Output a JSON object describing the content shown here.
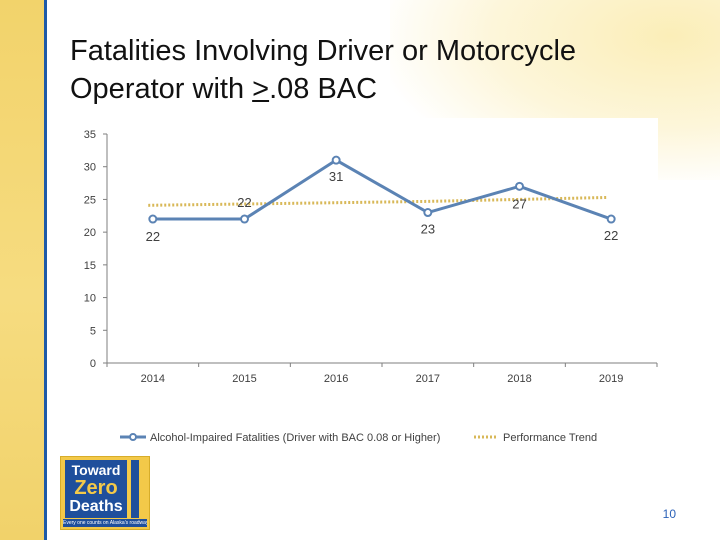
{
  "slide": {
    "title_line1": "Fatalities Involving Driver or Motorcycle",
    "title_line2_pre": "Operator with ",
    "title_line2_u": ">",
    "title_line2_post": ".08 BAC",
    "page_number": "10"
  },
  "logo": {
    "line1": "Toward",
    "line2": "Zero",
    "line3": "Deaths",
    "tagline": "Every one counts on Alaska's roadways"
  },
  "colors": {
    "series1": "#5b83b4",
    "series2": "#d8b858",
    "axis": "#7f7f7f",
    "text": "#404040",
    "accent_blue": "#1e5aa8",
    "accent_gold": "#f2d36b"
  },
  "chart_data": {
    "type": "line",
    "categories": [
      "2014",
      "2015",
      "2016",
      "2017",
      "2018",
      "2019"
    ],
    "ylim": [
      0,
      35
    ],
    "yticks": [
      "0",
      "5",
      "10",
      "15",
      "20",
      "25",
      "30",
      "35"
    ],
    "grid": false,
    "legend": "bottom",
    "series": [
      {
        "name": "Alcohol-Impaired Fatalities (Driver with BAC 0.08 or Higher)",
        "values": [
          22,
          22,
          31,
          23,
          27,
          22
        ],
        "labels": [
          "22",
          "22",
          "31",
          "23",
          "27",
          "22"
        ],
        "style": "solid-marker"
      },
      {
        "name": "Performance Trend",
        "values": [
          24.1,
          24.3,
          24.5,
          24.7,
          25.0,
          25.3
        ],
        "style": "dotted"
      }
    ]
  }
}
